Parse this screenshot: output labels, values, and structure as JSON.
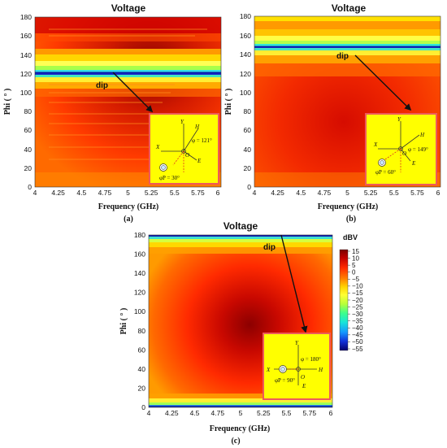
{
  "chart_data": [
    {
      "panel": "(a)",
      "type": "heatmap",
      "title": "Voltage",
      "xlabel": "Frequency (GHz)",
      "ylabel": "Phi ( ° )",
      "xlim": [
        4,
        6
      ],
      "ylim": [
        0,
        180
      ],
      "xticks": [
        "4",
        "4.25",
        "4.5",
        "4.75",
        "5",
        "5.25",
        "5.5",
        "5.75",
        "6"
      ],
      "yticks": [
        "0",
        "20",
        "40",
        "60",
        "80",
        "100",
        "120",
        "140",
        "160",
        "180"
      ],
      "dip_phi": 121,
      "annotation": "dip",
      "inset": {
        "phi_label": "φ = 121°",
        "phi_p_label": "φP = 30°",
        "axes": [
          "Y",
          "X",
          "H",
          "E",
          "O"
        ]
      }
    },
    {
      "panel": "(b)",
      "type": "heatmap",
      "title": "Voltage",
      "xlabel": "Frequency (GHz)",
      "ylabel": "Phi ( ° )",
      "xlim": [
        4,
        6
      ],
      "ylim": [
        0,
        180
      ],
      "xticks": [
        "4",
        "4.25",
        "4.5",
        "4.75",
        "5",
        "5.25",
        "5.5",
        "5.75",
        "6"
      ],
      "yticks": [
        "0",
        "20",
        "40",
        "60",
        "80",
        "100",
        "120",
        "140",
        "160",
        "180"
      ],
      "dip_phi": 149,
      "annotation": "dip",
      "inset": {
        "phi_label": "φ = 149°",
        "phi_p_label": "φP = 60°",
        "axes": [
          "Y",
          "X",
          "H",
          "E",
          "O"
        ]
      }
    },
    {
      "panel": "(c)",
      "type": "heatmap",
      "title": "Voltage",
      "xlabel": "Frequency (GHz)",
      "ylabel": "Phi ( ° )",
      "xlim": [
        4,
        6
      ],
      "ylim": [
        0,
        180
      ],
      "xticks": [
        "4",
        "4.25",
        "4.5",
        "4.75",
        "5",
        "5.25",
        "5.5",
        "5.75",
        "6"
      ],
      "yticks": [
        "0",
        "20",
        "40",
        "60",
        "80",
        "100",
        "120",
        "140",
        "160",
        "180"
      ],
      "dip_phi": 180,
      "annotation": "dip",
      "inset": {
        "phi_label": "φ = 180°",
        "phi_p_label": "φP = 90°",
        "axes": [
          "Y",
          "X",
          "H",
          "E",
          "O"
        ]
      }
    }
  ],
  "colorbar": {
    "label": "dBV",
    "min": -55,
    "max": 15,
    "ticks": [
      "15",
      "10",
      "5",
      "0",
      "−5",
      "−10",
      "−15",
      "−20",
      "−25",
      "−30",
      "−35",
      "−40",
      "−45",
      "−50",
      "−55"
    ],
    "colors": [
      "#7a0000",
      "#c00000",
      "#ff2a00",
      "#ff7a00",
      "#ffd400",
      "#ffff33",
      "#b7ff3a",
      "#3cff8c",
      "#17e5d8",
      "#1598ff",
      "#1230d8",
      "#06006a"
    ]
  }
}
